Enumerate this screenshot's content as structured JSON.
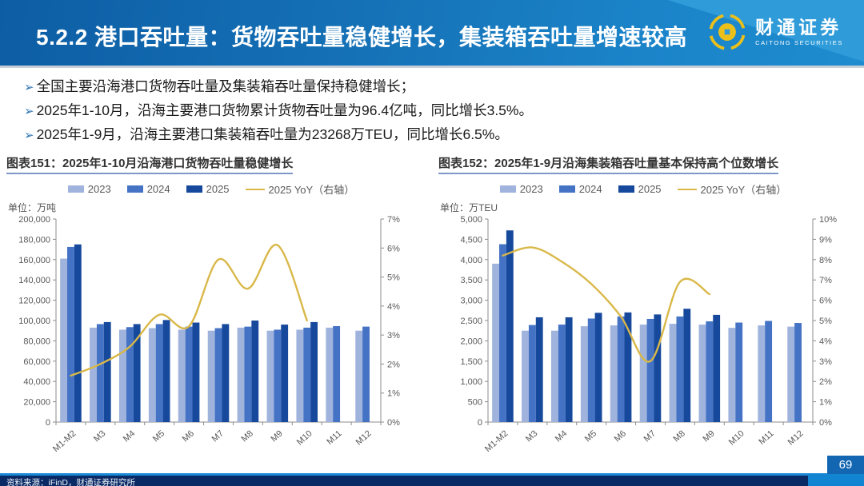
{
  "header": {
    "title": "5.2.2 港口吞吐量：货物吞吐量稳健增长，集装箱吞吐量增速较高",
    "logo_cn": "财通证券",
    "logo_en": "CAITONG SECURITIES"
  },
  "bullets": [
    {
      "marker": "➢",
      "text": "全国主要沿海港口货物吞吐量及集装箱吞吐量保持稳健增长；"
    },
    {
      "marker": "➢",
      "text": "2025年1-10月，沿海主要港口货物累计货物吞吐量为96.4亿吨，同比增长3.5%。"
    },
    {
      "marker": "➢",
      "text": "2025年1-9月，沿海主要港口集装箱吞吐量为23268万TEU，同比增长6.5%。"
    }
  ],
  "colors": {
    "series_2023": "#9fb3dd",
    "series_2024": "#4472c4",
    "series_2025": "#16489c",
    "yoy_line": "#d9b848",
    "header_blue": "#1673b8",
    "footer_navy": "#0a2a66",
    "accent_blue": "#1285d2"
  },
  "chart_data": [
    {
      "type": "bar",
      "title": "图表151：2025年1-10月沿海港口货物吞吐量稳健增长",
      "unit_label": "单位：万吨",
      "categories": [
        "M1-M2",
        "M3",
        "M4",
        "M5",
        "M6",
        "M7",
        "M8",
        "M9",
        "M10",
        "M11",
        "M12"
      ],
      "series": [
        {
          "name": "2023",
          "color": "#9fb3dd",
          "values": [
            161000,
            93000,
            91000,
            92500,
            91000,
            90000,
            93000,
            90000,
            91000,
            93000,
            90000
          ]
        },
        {
          "name": "2024",
          "color": "#4472c4",
          "values": [
            172500,
            96500,
            93500,
            96500,
            94000,
            92500,
            94000,
            91000,
            93000,
            94500,
            94000
          ]
        },
        {
          "name": "2025",
          "color": "#16489c",
          "values": [
            175000,
            98500,
            96500,
            100500,
            98000,
            96500,
            100000,
            96000,
            98500,
            null,
            null
          ]
        }
      ],
      "line_series": {
        "name": "2025 YoY（右轴）",
        "color": "#d9b848",
        "axis": "right",
        "values": [
          1.6,
          2.0,
          2.6,
          3.7,
          3.3,
          5.6,
          4.6,
          6.1,
          3.5,
          null,
          null
        ]
      },
      "left_axis": {
        "min": 0,
        "max": 200000,
        "step": 20000
      },
      "right_axis": {
        "min": 0,
        "max": 7,
        "step": 1,
        "suffix": "%"
      },
      "legend_position": "top"
    },
    {
      "type": "bar",
      "title": "图表152：2025年1-9月沿海集装箱吞吐量基本保持高个位数增长",
      "unit_label": "单位：万TEU",
      "categories": [
        "M1-M2",
        "M3",
        "M4",
        "M5",
        "M6",
        "M7",
        "M8",
        "M9",
        "M10",
        "M11",
        "M12"
      ],
      "series": [
        {
          "name": "2023",
          "color": "#9fb3dd",
          "values": [
            3900,
            2250,
            2250,
            2360,
            2380,
            2400,
            2420,
            2400,
            2320,
            2380,
            2350
          ]
        },
        {
          "name": "2024",
          "color": "#4472c4",
          "values": [
            4380,
            2390,
            2400,
            2550,
            2600,
            2540,
            2600,
            2480,
            2450,
            2490,
            2440
          ]
        },
        {
          "name": "2025",
          "color": "#16489c",
          "values": [
            4720,
            2580,
            2580,
            2690,
            2700,
            2650,
            2790,
            2640,
            null,
            null,
            null
          ]
        }
      ],
      "line_series": {
        "name": "2025 YoY（右轴）",
        "color": "#d9b848",
        "axis": "right",
        "values": [
          8.2,
          8.6,
          7.9,
          6.8,
          5.2,
          3.0,
          6.9,
          6.3,
          null,
          null,
          null
        ]
      },
      "left_axis": {
        "min": 0,
        "max": 5000,
        "step": 500
      },
      "right_axis": {
        "min": 0,
        "max": 10,
        "step": 1,
        "suffix": "%"
      },
      "legend_position": "top"
    }
  ],
  "footer": {
    "source": "资料来源：iFinD，财通证券研究所",
    "page": "69"
  }
}
